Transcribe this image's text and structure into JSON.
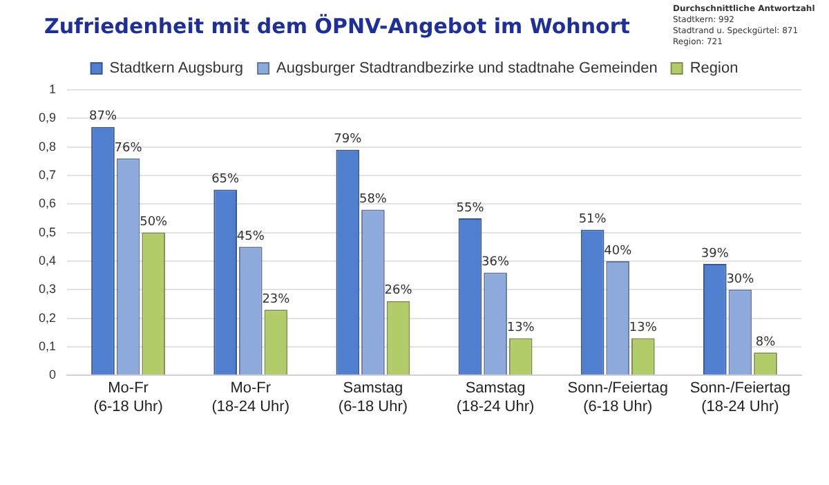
{
  "chart_data": {
    "type": "bar",
    "title": "Zufriedenheit mit dem ÖPNV-Angebot im Wohnort",
    "annotations": [
      "Durchschnittliche Antwortzahl",
      "Stadtkern: 992",
      "Stadtrand u. Speckgürtel: 871",
      "Region: 721"
    ],
    "categories": [
      "Mo-Fr\n(6-18 Uhr)",
      "Mo-Fr\n(18-24 Uhr)",
      "Samstag\n(6-18 Uhr)",
      "Samstag\n(18-24 Uhr)",
      "Sonn-/Feiertag\n(6-18 Uhr)",
      "Sonn-/Feiertag\n(18-24 Uhr)"
    ],
    "series": [
      {
        "name": "Stadtkern Augsburg",
        "color": "#4f7fce",
        "values": [
          0.87,
          0.65,
          0.79,
          0.55,
          0.51,
          0.39
        ],
        "value_labels": [
          "87%",
          "65%",
          "79%",
          "55%",
          "51%",
          "39%"
        ]
      },
      {
        "name": "Augsburger Stadtrandbezirke und stadtnahe Gemeinden",
        "color": "#8eaadc",
        "values": [
          0.76,
          0.45,
          0.58,
          0.36,
          0.4,
          0.3
        ],
        "value_labels": [
          "76%",
          "45%",
          "58%",
          "36%",
          "40%",
          "30%"
        ]
      },
      {
        "name": "Region",
        "color": "#b2cc6a",
        "values": [
          0.5,
          0.23,
          0.26,
          0.13,
          0.13,
          0.08
        ],
        "value_labels": [
          "50%",
          "23%",
          "26%",
          "13%",
          "13%",
          "8%"
        ]
      }
    ],
    "ylim": [
      0,
      1
    ],
    "yticks": [
      0,
      {
        "value": 0.1,
        "label": "0,1"
      },
      {
        "value": 0.2,
        "label": "0,2"
      },
      {
        "value": 0.3,
        "label": "0,3"
      },
      {
        "value": 0.4,
        "label": "0,4"
      },
      {
        "value": 0.5,
        "label": "0,5"
      },
      {
        "value": 0.6,
        "label": "0,6"
      },
      {
        "value": 0.7,
        "label": "0,7"
      },
      {
        "value": 0.8,
        "label": "0,8"
      },
      {
        "value": 0.9,
        "label": "0,9"
      },
      1
    ],
    "grid": "y",
    "legend": "top"
  }
}
